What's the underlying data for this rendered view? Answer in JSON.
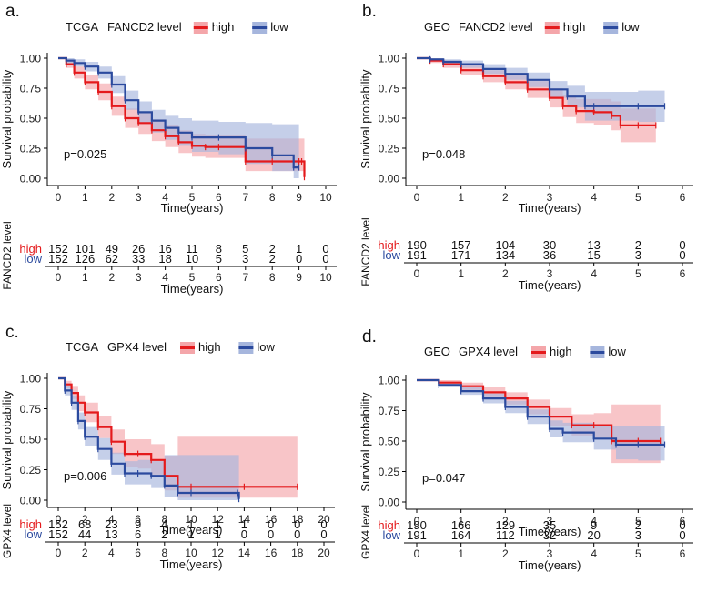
{
  "chart_data": [
    {
      "type": "line",
      "subtype": "kaplan-meier",
      "panel_label": "a.",
      "title": "TCGA",
      "legend_title": "FANCD2 level",
      "legend": [
        "high",
        "low"
      ],
      "colors": {
        "high": "#e41a1c",
        "low": "#2b4a9e",
        "high_band": "#f4a6aa",
        "low_band": "#a6b6dd"
      },
      "xlabel": "Time(years)",
      "ylabel": "Survival probability",
      "risk_table_ylabel": "FANCD2 level",
      "xlim": [
        0,
        10
      ],
      "xticks": [
        0,
        1,
        2,
        3,
        4,
        5,
        6,
        7,
        8,
        9,
        10
      ],
      "xtick_labels": [
        "0",
        "1",
        "2",
        "3",
        "4",
        "5",
        "6",
        "7",
        "8",
        "9",
        "10"
      ],
      "ylim": [
        0,
        1
      ],
      "yticks": [
        0,
        0.25,
        0.5,
        0.75,
        1
      ],
      "ytick_labels": [
        "0.00",
        "0.25",
        "0.50",
        "0.75",
        "1.00"
      ],
      "pvalue": "p=0.025",
      "series": [
        {
          "name": "high",
          "x": [
            0,
            0.3,
            0.6,
            1,
            1.5,
            2,
            2.5,
            3,
            3.5,
            4,
            4.5,
            5,
            5.5,
            6,
            7,
            8,
            9,
            9.1,
            9.2
          ],
          "y": [
            1,
            0.95,
            0.88,
            0.8,
            0.72,
            0.6,
            0.5,
            0.46,
            0.4,
            0.35,
            0.3,
            0.27,
            0.26,
            0.26,
            0.14,
            0.14,
            0.14,
            0.14,
            0.01
          ],
          "ci_low": [
            1,
            0.92,
            0.83,
            0.74,
            0.65,
            0.52,
            0.42,
            0.37,
            0.31,
            0.26,
            0.21,
            0.18,
            0.17,
            0.17,
            0.06,
            0.06,
            0.06,
            0.06,
            0.0
          ],
          "ci_high": [
            1,
            0.98,
            0.93,
            0.86,
            0.79,
            0.68,
            0.58,
            0.55,
            0.49,
            0.44,
            0.4,
            0.37,
            0.36,
            0.36,
            0.33,
            0.33,
            0.33,
            0.33,
            0.33
          ]
        },
        {
          "name": "low",
          "x": [
            0,
            0.3,
            0.6,
            1,
            1.5,
            2,
            2.5,
            3,
            3.5,
            4,
            4.5,
            5,
            6,
            7,
            8,
            8.8,
            9
          ],
          "y": [
            1,
            0.98,
            0.96,
            0.93,
            0.88,
            0.78,
            0.65,
            0.55,
            0.48,
            0.42,
            0.38,
            0.34,
            0.34,
            0.25,
            0.19,
            0.09,
            0.09
          ],
          "ci_low": [
            1,
            0.96,
            0.93,
            0.89,
            0.83,
            0.71,
            0.57,
            0.46,
            0.38,
            0.32,
            0.27,
            0.22,
            0.2,
            0.12,
            0.06,
            0.0,
            0.0
          ],
          "ci_high": [
            1,
            1,
            0.99,
            0.97,
            0.93,
            0.85,
            0.73,
            0.64,
            0.57,
            0.52,
            0.5,
            0.48,
            0.47,
            0.46,
            0.45,
            0.45,
            0.45
          ]
        }
      ],
      "risk_table": {
        "times": [
          "0",
          "1",
          "2",
          "3",
          "4",
          "5",
          "6",
          "7",
          "8",
          "9",
          "10"
        ],
        "rows": [
          {
            "name": "high",
            "values": [
              "152",
              "101",
              "49",
              "26",
              "16",
              "11",
              "8",
              "5",
              "2",
              "1",
              "0"
            ]
          },
          {
            "name": "low",
            "values": [
              "152",
              "126",
              "62",
              "33",
              "18",
              "10",
              "5",
              "3",
              "2",
              "0",
              "0"
            ]
          }
        ]
      }
    },
    {
      "type": "line",
      "subtype": "kaplan-meier",
      "panel_label": "b.",
      "title": "GEO",
      "legend_title": "FANCD2 level",
      "legend": [
        "high",
        "low"
      ],
      "colors": {
        "high": "#e41a1c",
        "low": "#2b4a9e",
        "high_band": "#f4a6aa",
        "low_band": "#a6b6dd"
      },
      "xlabel": "Time(years)",
      "ylabel": "Survival probability",
      "risk_table_ylabel": "FANCD2 level",
      "xlim": [
        0,
        6
      ],
      "xticks": [
        0,
        1,
        2,
        3,
        4,
        5,
        6
      ],
      "xtick_labels": [
        "0",
        "1",
        "2",
        "3",
        "4",
        "5",
        "6"
      ],
      "ylim": [
        0,
        1
      ],
      "yticks": [
        0,
        0.25,
        0.5,
        0.75,
        1
      ],
      "ytick_labels": [
        "0.00",
        "0.25",
        "0.50",
        "0.75",
        "1.00"
      ],
      "pvalue": "p=0.048",
      "series": [
        {
          "name": "high",
          "x": [
            0,
            0.3,
            0.6,
            1,
            1.5,
            2,
            2.5,
            3,
            3.3,
            3.6,
            4,
            4.4,
            4.6,
            5,
            5.4
          ],
          "y": [
            1,
            0.98,
            0.95,
            0.9,
            0.85,
            0.8,
            0.74,
            0.67,
            0.6,
            0.56,
            0.55,
            0.52,
            0.44,
            0.44,
            0.44
          ],
          "ci_low": [
            1,
            0.96,
            0.92,
            0.86,
            0.8,
            0.74,
            0.67,
            0.59,
            0.51,
            0.46,
            0.44,
            0.4,
            0.3,
            0.3,
            0.3
          ],
          "ci_high": [
            1,
            1,
            0.98,
            0.94,
            0.9,
            0.86,
            0.81,
            0.75,
            0.69,
            0.66,
            0.66,
            0.64,
            0.58,
            0.58,
            0.58
          ]
        },
        {
          "name": "low",
          "x": [
            0,
            0.3,
            0.6,
            1,
            1.5,
            2,
            2.5,
            3,
            3.4,
            3.8,
            4,
            5,
            5.6
          ],
          "y": [
            1,
            0.99,
            0.97,
            0.95,
            0.91,
            0.87,
            0.82,
            0.74,
            0.68,
            0.6,
            0.6,
            0.6,
            0.6
          ],
          "ci_low": [
            1,
            0.98,
            0.95,
            0.92,
            0.87,
            0.82,
            0.76,
            0.67,
            0.59,
            0.48,
            0.48,
            0.47,
            0.47
          ],
          "ci_high": [
            1,
            1,
            0.99,
            0.98,
            0.95,
            0.92,
            0.88,
            0.81,
            0.77,
            0.72,
            0.72,
            0.73,
            0.73
          ]
        }
      ],
      "risk_table": {
        "times": [
          "0",
          "1",
          "2",
          "3",
          "4",
          "5",
          "6"
        ],
        "rows": [
          {
            "name": "high",
            "values": [
              "190",
              "157",
              "104",
              "30",
              "13",
              "2",
              "0"
            ]
          },
          {
            "name": "low",
            "values": [
              "191",
              "171",
              "134",
              "36",
              "15",
              "3",
              "0"
            ]
          }
        ]
      }
    },
    {
      "type": "line",
      "subtype": "kaplan-meier",
      "panel_label": "c.",
      "title": "TCGA",
      "legend_title": "GPX4 level",
      "legend": [
        "high",
        "low"
      ],
      "colors": {
        "high": "#e41a1c",
        "low": "#2b4a9e",
        "high_band": "#f4a6aa",
        "low_band": "#a6b6dd"
      },
      "xlabel": "Time(years)",
      "ylabel": "Survival probability",
      "risk_table_ylabel": "GPX4 level",
      "xlim": [
        0,
        20
      ],
      "xticks": [
        0,
        2,
        4,
        6,
        8,
        10,
        12,
        14,
        16,
        18,
        20
      ],
      "xtick_labels": [
        "0",
        "2",
        "4",
        "6",
        "8",
        "10",
        "12",
        "14",
        "16",
        "18",
        "20"
      ],
      "ylim": [
        0,
        1
      ],
      "yticks": [
        0,
        0.25,
        0.5,
        0.75,
        1
      ],
      "ytick_labels": [
        "0.00",
        "0.25",
        "0.50",
        "0.75",
        "1.00"
      ],
      "pvalue": "p=0.006",
      "series": [
        {
          "name": "high",
          "x": [
            0,
            0.5,
            1,
            1.5,
            2,
            3,
            4,
            5,
            6,
            7,
            8,
            9,
            10,
            14,
            18
          ],
          "y": [
            1,
            0.95,
            0.88,
            0.8,
            0.72,
            0.6,
            0.48,
            0.38,
            0.38,
            0.33,
            0.2,
            0.11,
            0.11,
            0.11,
            0.11
          ],
          "ci_low": [
            1,
            0.92,
            0.83,
            0.73,
            0.64,
            0.51,
            0.38,
            0.27,
            0.26,
            0.21,
            0.08,
            0.02,
            0.02,
            0.02,
            0.02
          ],
          "ci_high": [
            1,
            0.98,
            0.93,
            0.86,
            0.8,
            0.69,
            0.58,
            0.5,
            0.5,
            0.46,
            0.36,
            0.52,
            0.52,
            0.52,
            0.52
          ]
        },
        {
          "name": "low",
          "x": [
            0,
            0.5,
            1,
            1.5,
            2,
            3,
            4,
            5,
            6,
            7,
            8,
            9,
            10,
            13.5,
            13.6
          ],
          "y": [
            1,
            0.9,
            0.8,
            0.65,
            0.52,
            0.42,
            0.3,
            0.22,
            0.22,
            0.2,
            0.12,
            0.06,
            0.06,
            0.06,
            0.01
          ],
          "ci_low": [
            1,
            0.86,
            0.74,
            0.58,
            0.44,
            0.33,
            0.21,
            0.13,
            0.13,
            0.1,
            0.03,
            0.0,
            0.0,
            0.0,
            0.0
          ],
          "ci_high": [
            1,
            0.94,
            0.86,
            0.72,
            0.6,
            0.51,
            0.39,
            0.32,
            0.33,
            0.32,
            0.37,
            0.37,
            0.37,
            0.37,
            0.37
          ]
        }
      ],
      "risk_table": {
        "times": [
          "0",
          "2",
          "4",
          "6",
          "8",
          "10",
          "12",
          "14",
          "16",
          "18",
          "20"
        ],
        "rows": [
          {
            "name": "high",
            "values": [
              "152",
              "68",
              "23",
              "9",
              "4",
              "1",
              "1",
              "1",
              "0",
              "0",
              "0"
            ]
          },
          {
            "name": "low",
            "values": [
              "152",
              "44",
              "13",
              "6",
              "2",
              "1",
              "1",
              "0",
              "0",
              "0",
              "0"
            ]
          }
        ]
      }
    },
    {
      "type": "line",
      "subtype": "kaplan-meier",
      "panel_label": "d.",
      "title": "GEO",
      "legend_title": "GPX4 level",
      "legend": [
        "high",
        "low"
      ],
      "colors": {
        "high": "#e41a1c",
        "low": "#2b4a9e",
        "high_band": "#f4a6aa",
        "low_band": "#a6b6dd"
      },
      "xlabel": "Time(years)",
      "ylabel": "Survival probability",
      "risk_table_ylabel": "GPX4 level",
      "xlim": [
        0,
        6
      ],
      "xticks": [
        0,
        1,
        2,
        3,
        4,
        5,
        6
      ],
      "xtick_labels": [
        "0",
        "1",
        "2",
        "3",
        "4",
        "5",
        "6"
      ],
      "ylim": [
        0,
        1
      ],
      "yticks": [
        0,
        0.25,
        0.5,
        0.75,
        1
      ],
      "ytick_labels": [
        "0.00",
        "0.25",
        "0.50",
        "0.75",
        "1.00"
      ],
      "pvalue": "p=0.047",
      "series": [
        {
          "name": "high",
          "x": [
            0,
            0.5,
            1,
            1.5,
            2,
            2.5,
            3,
            3.5,
            4,
            4.4,
            5,
            5.5
          ],
          "y": [
            1,
            0.98,
            0.95,
            0.9,
            0.85,
            0.78,
            0.7,
            0.63,
            0.63,
            0.5,
            0.5,
            0.5
          ],
          "ci_low": [
            1,
            0.96,
            0.92,
            0.86,
            0.8,
            0.72,
            0.62,
            0.54,
            0.53,
            0.32,
            0.32,
            0.32
          ],
          "ci_high": [
            1,
            1,
            0.98,
            0.94,
            0.9,
            0.84,
            0.77,
            0.72,
            0.73,
            0.8,
            0.8,
            0.8
          ]
        },
        {
          "name": "low",
          "x": [
            0,
            0.5,
            1,
            1.5,
            2,
            2.5,
            3,
            3.3,
            4,
            4.5,
            5,
            5.6
          ],
          "y": [
            1,
            0.96,
            0.91,
            0.85,
            0.78,
            0.7,
            0.6,
            0.57,
            0.52,
            0.47,
            0.47,
            0.47
          ],
          "ci_low": [
            1,
            0.94,
            0.88,
            0.81,
            0.73,
            0.64,
            0.53,
            0.49,
            0.43,
            0.35,
            0.34,
            0.34
          ],
          "ci_high": [
            1,
            0.98,
            0.94,
            0.89,
            0.83,
            0.76,
            0.67,
            0.65,
            0.62,
            0.62,
            0.62,
            0.62
          ]
        }
      ],
      "risk_table": {
        "times": [
          "0",
          "1",
          "2",
          "3",
          "4",
          "5",
          "6"
        ],
        "rows": [
          {
            "name": "high",
            "values": [
              "190",
              "166",
              "129",
              "35",
              "9",
              "2",
              "0"
            ]
          },
          {
            "name": "low",
            "values": [
              "191",
              "164",
              "112",
              "32",
              "20",
              "3",
              "0"
            ]
          }
        ]
      }
    }
  ]
}
